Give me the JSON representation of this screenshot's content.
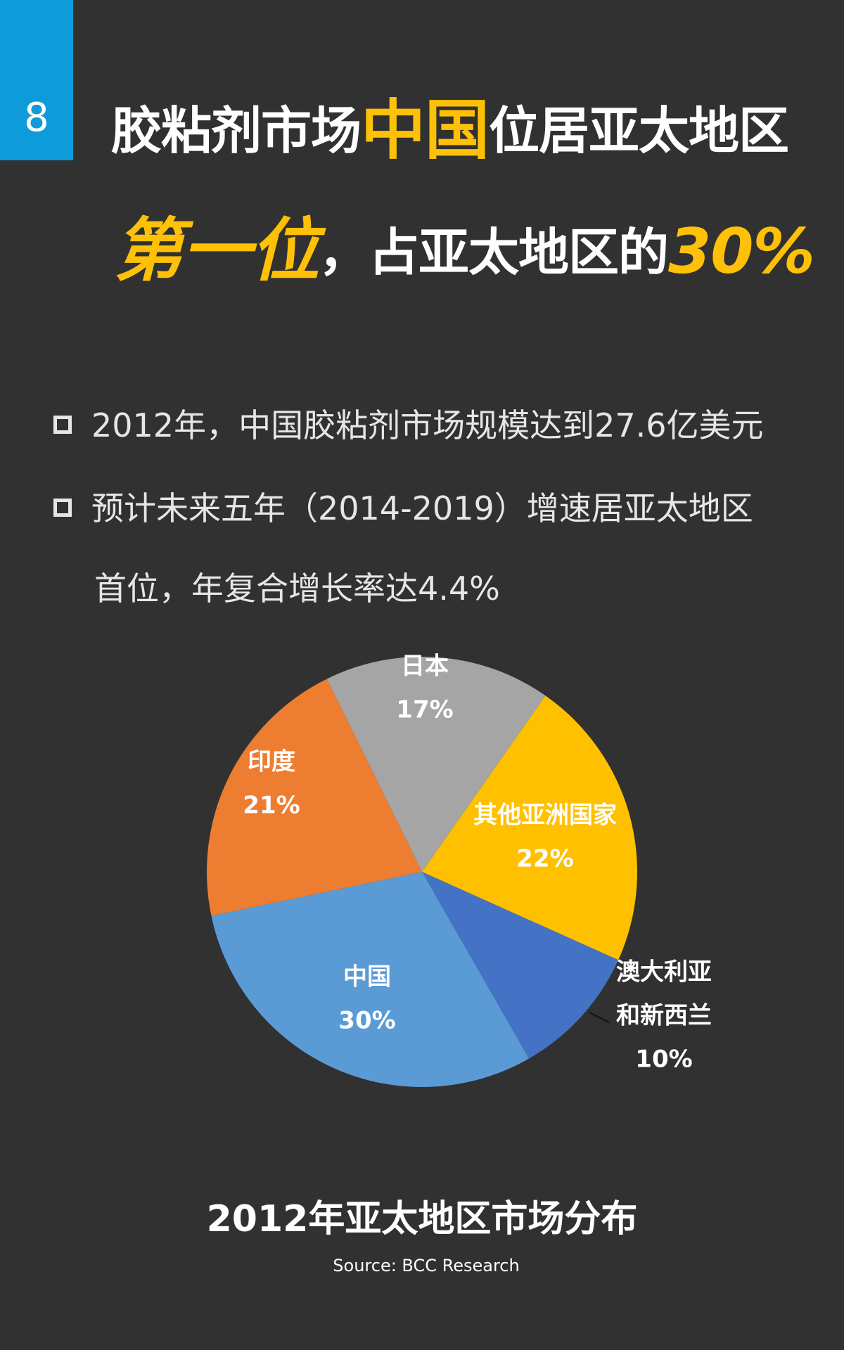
{
  "page_number": "8",
  "title": {
    "line1_pre": "胶粘剂市场",
    "line1_highlight": "中国",
    "line1_post": "位居亚太地区",
    "line2_highlight": "第一位",
    "line2_text": "，占亚太地区的",
    "line2_percent": "30%"
  },
  "bullets": {
    "b1": "2012年，中国胶粘剂市场规模达到27.6亿美元",
    "b2": "预计未来五年（2014-2019）增速居亚太地区",
    "b2_cont": "首位，年复合增长率达4.4%"
  },
  "chart_data": {
    "type": "pie",
    "title": "2012年亚太地区市场分布",
    "source": "Source: BCC Research",
    "slices": [
      {
        "label": "其他亚洲国家",
        "value": 22,
        "value_label": "22%",
        "color": "#ffc000"
      },
      {
        "label": "澳大利亚和新西兰",
        "label_lines": [
          "澳大利亚",
          "和新西兰"
        ],
        "value": 10,
        "value_label": "10%",
        "color": "#4472c4"
      },
      {
        "label": "中国",
        "value": 30,
        "value_label": "30%",
        "color": "#5b9bd5"
      },
      {
        "label": "印度",
        "value": 21,
        "value_label": "21%",
        "color": "#ed7d31"
      },
      {
        "label": "日本",
        "value": 17,
        "value_label": "17%",
        "color": "#a5a5a5"
      }
    ]
  }
}
